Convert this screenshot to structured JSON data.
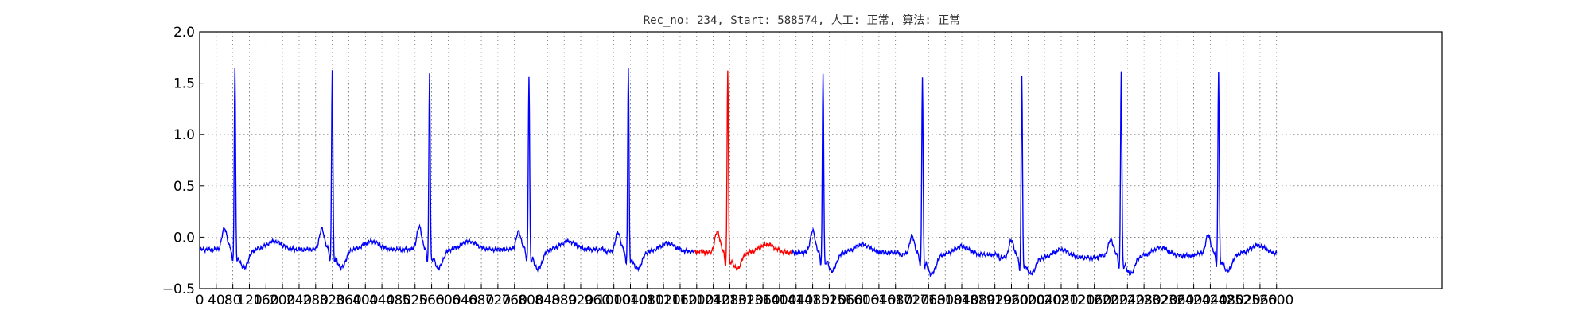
{
  "chart_data": {
    "type": "line",
    "title": "Rec_no: 234, Start: 588574, 人工: 正常, 算法: 正常",
    "xlabel": "",
    "ylabel": "",
    "xlim": [
      0,
      3000
    ],
    "ylim": [
      -0.5,
      2.0
    ],
    "x_ticks": [
      0,
      40,
      80,
      120,
      160,
      200,
      240,
      280,
      320,
      360,
      400,
      440,
      480,
      520,
      560,
      600,
      640,
      680,
      720,
      760,
      800,
      840,
      880,
      920,
      960,
      1000,
      1040,
      1080,
      1120,
      1160,
      1200,
      1240,
      1280,
      1320,
      1360,
      1400,
      1440,
      1480,
      1520,
      1560,
      1600,
      1640,
      1680,
      1720,
      1760,
      1800,
      1840,
      1880,
      1920,
      1960,
      2000,
      2040,
      2080,
      2120,
      2160,
      2200,
      2240,
      2280,
      2320,
      2360,
      2400,
      2440,
      2480,
      2520,
      2560,
      2600
    ],
    "y_ticks": [
      "2.0",
      "1.5",
      "1.0",
      "0.5",
      "0.0",
      "−0.5"
    ],
    "y_tick_values": [
      2.0,
      1.5,
      1.0,
      0.5,
      0.0,
      -0.5
    ],
    "grid": true,
    "highlight_segment": {
      "x_start": 1195,
      "x_end": 1430,
      "color": "#ff0000"
    },
    "signal_color": "#0000ff",
    "num_samples": 2600,
    "beats": [
      {
        "r_x": 85,
        "r_peak": 1.66,
        "p_amp": 0.09,
        "trough": -0.3,
        "baseline": -0.12
      },
      {
        "r_x": 320,
        "r_peak": 1.66,
        "p_amp": 0.08,
        "trough": -0.3,
        "baseline": -0.12
      },
      {
        "r_x": 555,
        "r_peak": 1.62,
        "p_amp": 0.1,
        "trough": -0.3,
        "baseline": -0.12
      },
      {
        "r_x": 795,
        "r_peak": 1.6,
        "p_amp": 0.05,
        "trough": -0.31,
        "baseline": -0.12
      },
      {
        "r_x": 1035,
        "r_peak": 1.67,
        "p_amp": 0.05,
        "trough": -0.31,
        "baseline": -0.14
      },
      {
        "r_x": 1275,
        "r_peak": 1.66,
        "p_amp": 0.06,
        "trough": -0.31,
        "baseline": -0.15
      },
      {
        "r_x": 1505,
        "r_peak": 1.63,
        "p_amp": 0.06,
        "trough": -0.33,
        "baseline": -0.15
      },
      {
        "r_x": 1745,
        "r_peak": 1.6,
        "p_amp": 0.01,
        "trough": -0.36,
        "baseline": -0.17
      },
      {
        "r_x": 1985,
        "r_peak": 1.59,
        "p_amp": -0.03,
        "trough": -0.36,
        "baseline": -0.2
      },
      {
        "r_x": 2225,
        "r_peak": 1.65,
        "p_amp": -0.02,
        "trough": -0.36,
        "baseline": -0.18
      },
      {
        "r_x": 2460,
        "r_peak": 1.63,
        "p_amp": 0.02,
        "trough": -0.33,
        "baseline": -0.16
      }
    ]
  }
}
